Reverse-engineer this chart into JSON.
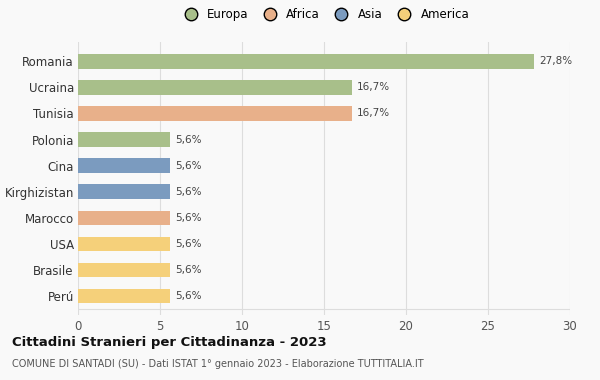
{
  "categories": [
    "Romania",
    "Ucraina",
    "Tunisia",
    "Polonia",
    "Cina",
    "Kirghizistan",
    "Marocco",
    "USA",
    "Brasile",
    "Perú"
  ],
  "values": [
    27.8,
    16.7,
    16.7,
    5.6,
    5.6,
    5.6,
    5.6,
    5.6,
    5.6,
    5.6
  ],
  "labels": [
    "27,8%",
    "16,7%",
    "16,7%",
    "5,6%",
    "5,6%",
    "5,6%",
    "5,6%",
    "5,6%",
    "5,6%",
    "5,6%"
  ],
  "colors": [
    "#a8bf8a",
    "#a8bf8a",
    "#e8b08a",
    "#a8bf8a",
    "#7b9bbf",
    "#7b9bbf",
    "#e8b08a",
    "#f5d07a",
    "#f5d07a",
    "#f5d07a"
  ],
  "legend_labels": [
    "Europa",
    "Africa",
    "Asia",
    "America"
  ],
  "legend_colors": [
    "#a8bf8a",
    "#e8b08a",
    "#7b9bbf",
    "#f5d07a"
  ],
  "title": "Cittadini Stranieri per Cittadinanza - 2023",
  "subtitle": "COMUNE DI SANTADI (SU) - Dati ISTAT 1° gennaio 2023 - Elaborazione TUTTITALIA.IT",
  "xlim": [
    0,
    30
  ],
  "xticks": [
    0,
    5,
    10,
    15,
    20,
    25,
    30
  ],
  "background_color": "#f9f9f9",
  "grid_color": "#dddddd",
  "bar_height": 0.55
}
